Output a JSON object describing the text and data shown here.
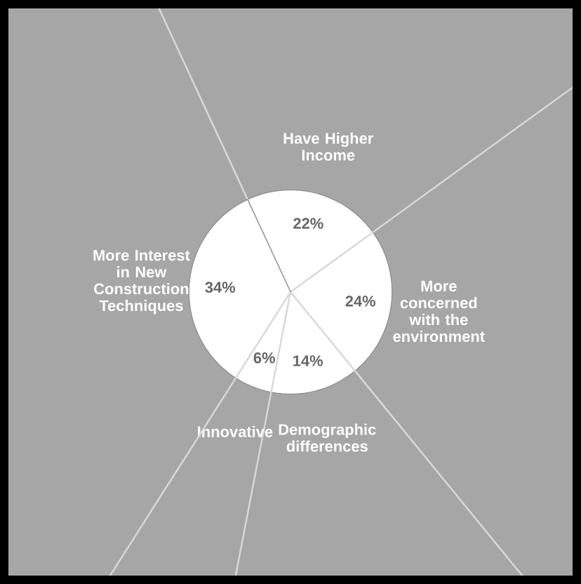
{
  "chart_data": {
    "type": "pie",
    "categories": [
      "Have Higher Income",
      "More concerned with the environment",
      "Demographic differences",
      "Innovative",
      "More Interest in New Construction Techniques"
    ],
    "values": [
      22,
      24,
      14,
      6,
      34
    ],
    "value_labels": [
      "22%",
      "24%",
      "14%",
      "6%",
      "34%"
    ],
    "colors": [
      "#ffffff",
      "#ffffff",
      "#ffffff",
      "#ffffff",
      "#ffffff"
    ]
  }
}
